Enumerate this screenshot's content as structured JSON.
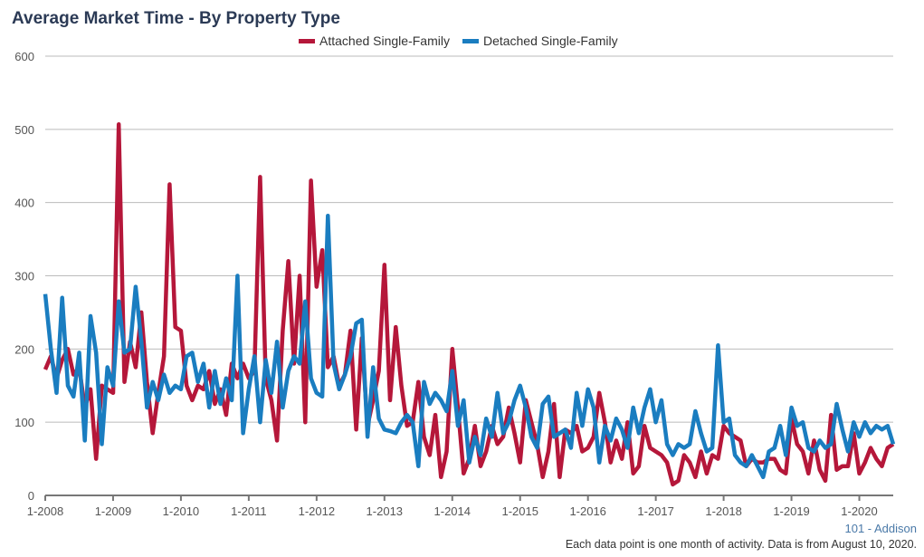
{
  "chart_data": {
    "type": "line",
    "title": "Average Market Time - By Property Type",
    "ylim": [
      0,
      600
    ],
    "yticks": [
      "0",
      "100",
      "200",
      "300",
      "400",
      "500",
      "600"
    ],
    "xticks": [
      "1-2008",
      "1-2009",
      "1-2010",
      "1-2011",
      "1-2012",
      "1-2013",
      "1-2014",
      "1-2015",
      "1-2016",
      "1-2017",
      "1-2018",
      "1-2019",
      "1-2020"
    ],
    "x_start": "1-2008",
    "x_end": "7-2020",
    "x_interval": "month",
    "grid": true,
    "legend_position": "top",
    "series": [
      {
        "name": "Attached Single-Family",
        "color": "#b5173a",
        "values": [
          172,
          190,
          160,
          185,
          200,
          165,
          175,
          120,
          145,
          50,
          150,
          145,
          140,
          507,
          155,
          210,
          175,
          250,
          155,
          85,
          140,
          190,
          425,
          230,
          225,
          150,
          130,
          150,
          145,
          170,
          125,
          145,
          110,
          180,
          160,
          180,
          160,
          170,
          435,
          160,
          130,
          75,
          225,
          320,
          180,
          300,
          100,
          430,
          285,
          335,
          175,
          190,
          150,
          165,
          225,
          90,
          215,
          95,
          130,
          170,
          315,
          130,
          230,
          150,
          95,
          100,
          155,
          80,
          55,
          110,
          25,
          60,
          200,
          120,
          30,
          50,
          95,
          40,
          60,
          95,
          70,
          80,
          120,
          85,
          45,
          130,
          100,
          70,
          25,
          60,
          125,
          25,
          90,
          85,
          95,
          60,
          65,
          80,
          140,
          100,
          45,
          75,
          50,
          100,
          30,
          40,
          95,
          65,
          60,
          55,
          45,
          15,
          20,
          55,
          45,
          25,
          60,
          30,
          55,
          50,
          95,
          85,
          80,
          75,
          40,
          50,
          45,
          45,
          50,
          50,
          35,
          30,
          105,
          70,
          60,
          30,
          75,
          35,
          20,
          110,
          35,
          40,
          40,
          85,
          30,
          45,
          65,
          50,
          40,
          65,
          70
        ]
      },
      {
        "name": "Detached Single-Family",
        "color": "#1a7dc0",
        "values": [
          275,
          200,
          140,
          270,
          150,
          135,
          195,
          75,
          245,
          195,
          70,
          175,
          150,
          265,
          195,
          200,
          285,
          210,
          120,
          155,
          130,
          165,
          140,
          150,
          145,
          190,
          195,
          155,
          180,
          120,
          170,
          125,
          160,
          130,
          300,
          85,
          145,
          190,
          100,
          185,
          140,
          210,
          120,
          170,
          190,
          180,
          265,
          160,
          140,
          135,
          382,
          180,
          145,
          165,
          190,
          235,
          240,
          80,
          175,
          105,
          90,
          88,
          85,
          100,
          110,
          100,
          40,
          155,
          125,
          140,
          130,
          115,
          170,
          95,
          130,
          45,
          80,
          55,
          105,
          80,
          140,
          85,
          100,
          130,
          150,
          120,
          80,
          65,
          125,
          135,
          80,
          85,
          90,
          65,
          140,
          95,
          145,
          120,
          45,
          95,
          75,
          105,
          90,
          65,
          120,
          85,
          120,
          145,
          100,
          130,
          70,
          55,
          70,
          65,
          70,
          115,
          85,
          60,
          65,
          205,
          100,
          105,
          55,
          45,
          40,
          55,
          40,
          25,
          60,
          65,
          95,
          55,
          120,
          95,
          100,
          65,
          60,
          75,
          65,
          70,
          125,
          90,
          60,
          100,
          80,
          100,
          85,
          95,
          90,
          95,
          70
        ]
      }
    ]
  },
  "footer": {
    "area": "101 - Addison",
    "note": "Each data point is one month of activity. Data is from August 10, 2020."
  }
}
